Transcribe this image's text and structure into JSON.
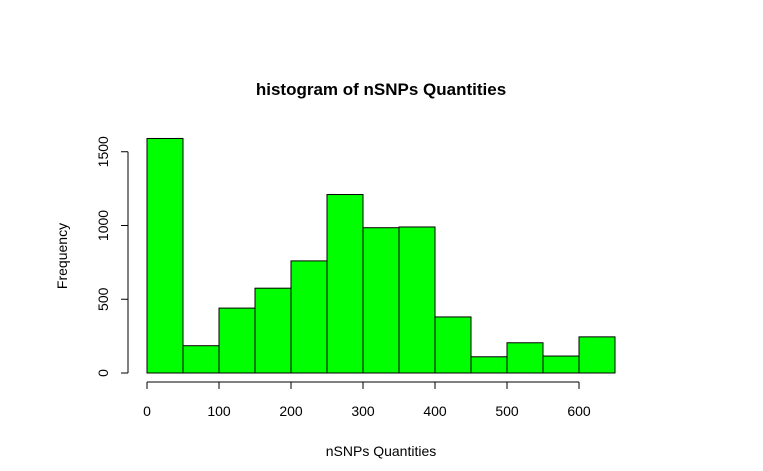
{
  "chart_data": {
    "type": "bar",
    "title": "histogram of nSNPs Quantities",
    "xlabel": "nSNPs Quantities",
    "ylabel": "Frequency",
    "bin_edges": [
      0,
      50,
      100,
      150,
      200,
      250,
      300,
      350,
      400,
      450,
      500,
      550,
      600,
      650
    ],
    "values": [
      1590,
      185,
      440,
      575,
      760,
      1210,
      985,
      990,
      380,
      110,
      205,
      115,
      245
    ],
    "xlim": [
      0,
      650
    ],
    "ylim": [
      0,
      1600
    ],
    "x_ticks": [
      0,
      100,
      200,
      300,
      400,
      500,
      600
    ],
    "y_ticks": [
      0,
      500,
      1000,
      1500
    ],
    "bar_color": "#00ff00",
    "grid": false
  }
}
